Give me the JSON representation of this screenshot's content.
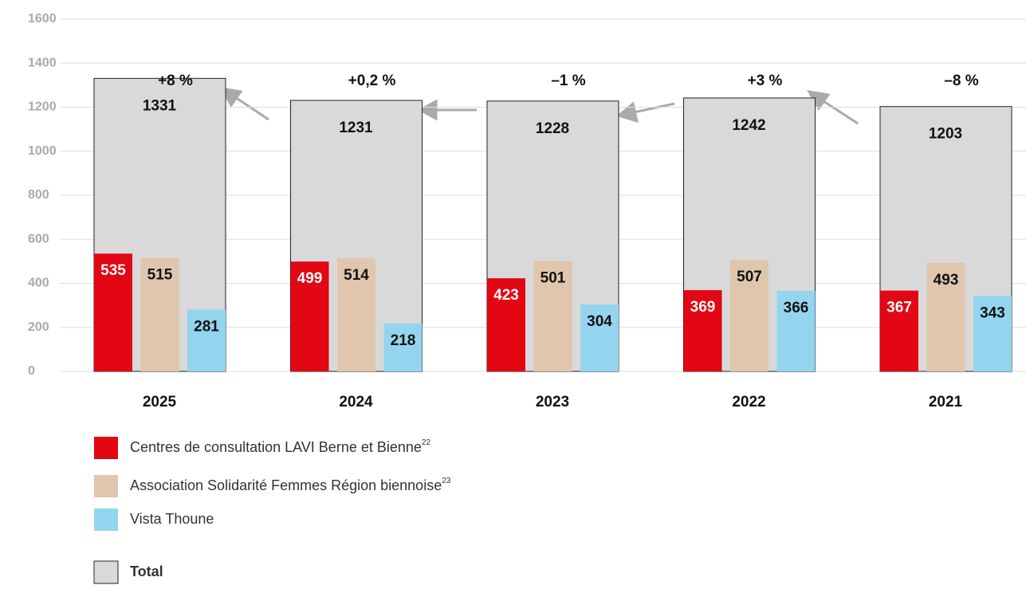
{
  "chart_data": {
    "type": "bar",
    "categories": [
      "2025",
      "2024",
      "2023",
      "2022",
      "2021"
    ],
    "total": {
      "name": "Total",
      "color": "#d9d9d9",
      "values": [
        1331,
        1231,
        1228,
        1242,
        1203
      ]
    },
    "series": [
      {
        "name": "Centres de consultation LAVI Berne et Bienne",
        "footnote": "22",
        "color": "#e30613",
        "values": [
          535,
          499,
          423,
          369,
          367
        ]
      },
      {
        "name": "Association Solidarité Femmes Région biennoise",
        "footnote": "23",
        "color": "#dfc6ad",
        "values": [
          515,
          514,
          501,
          507,
          493
        ]
      },
      {
        "name": "Vista Thoune",
        "color": "#93d5ee",
        "values": [
          281,
          218,
          304,
          366,
          343
        ]
      }
    ],
    "annotations": [
      "+8 %",
      "+0,2 %",
      "–1 %",
      "+3 %",
      "–8 %"
    ],
    "ylim": [
      0,
      1600
    ],
    "yticks": [
      0,
      200,
      400,
      600,
      800,
      1000,
      1200,
      1400,
      1600
    ],
    "grid": true
  }
}
